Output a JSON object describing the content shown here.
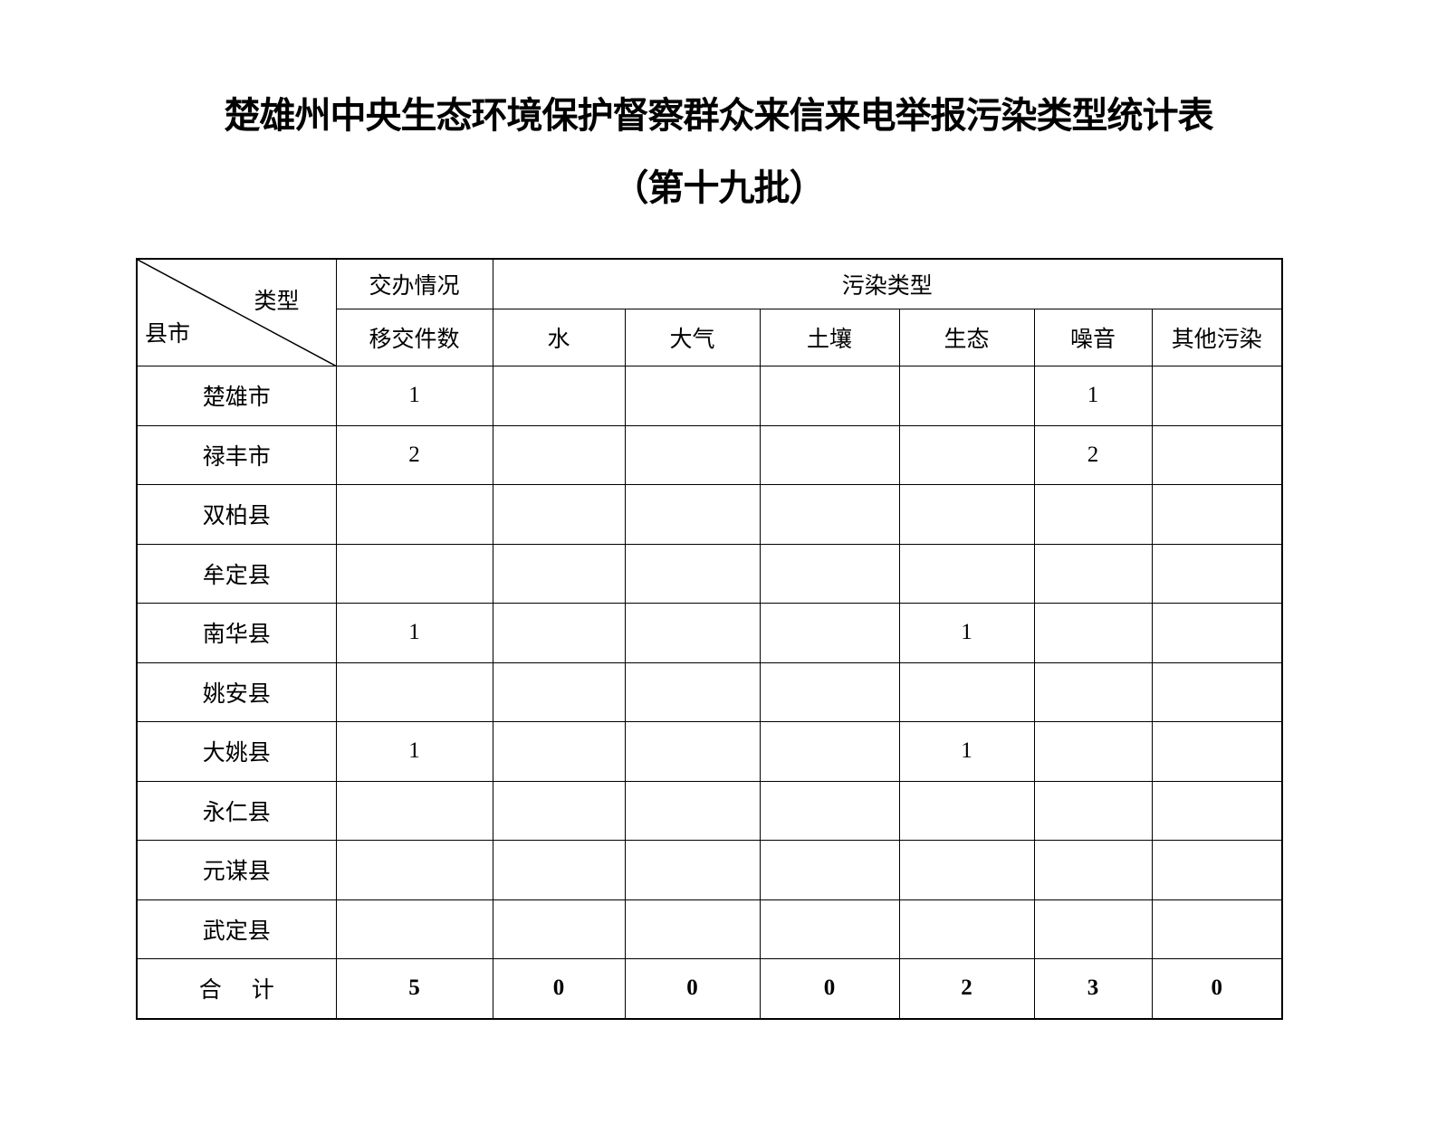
{
  "title": "楚雄州中央生态环境保护督察群众来信来电举报污染类型统计表",
  "subtitle": "（第十九批）",
  "table": {
    "corner_top": "类型",
    "corner_bottom": "县市",
    "group1": "交办情况",
    "group2": "污染类型",
    "columns": [
      "移交件数",
      "水",
      "大气",
      "土壤",
      "生态",
      "噪音",
      "其他污染"
    ],
    "rows": [
      {
        "name": "楚雄市",
        "values": [
          "1",
          "",
          "",
          "",
          "",
          "1",
          ""
        ]
      },
      {
        "name": "禄丰市",
        "values": [
          "2",
          "",
          "",
          "",
          "",
          "2",
          ""
        ]
      },
      {
        "name": "双柏县",
        "values": [
          "",
          "",
          "",
          "",
          "",
          "",
          ""
        ]
      },
      {
        "name": "牟定县",
        "values": [
          "",
          "",
          "",
          "",
          "",
          "",
          ""
        ]
      },
      {
        "name": "南华县",
        "values": [
          "1",
          "",
          "",
          "",
          "1",
          "",
          ""
        ]
      },
      {
        "name": "姚安县",
        "values": [
          "",
          "",
          "",
          "",
          "",
          "",
          ""
        ]
      },
      {
        "name": "大姚县",
        "values": [
          "1",
          "",
          "",
          "",
          "1",
          "",
          ""
        ]
      },
      {
        "name": "永仁县",
        "values": [
          "",
          "",
          "",
          "",
          "",
          "",
          ""
        ]
      },
      {
        "name": "元谋县",
        "values": [
          "",
          "",
          "",
          "",
          "",
          "",
          ""
        ]
      },
      {
        "name": "武定县",
        "values": [
          "",
          "",
          "",
          "",
          "",
          "",
          ""
        ]
      }
    ],
    "total": {
      "name": "合　 计",
      "values": [
        "5",
        "0",
        "0",
        "0",
        "2",
        "3",
        "0"
      ]
    }
  }
}
